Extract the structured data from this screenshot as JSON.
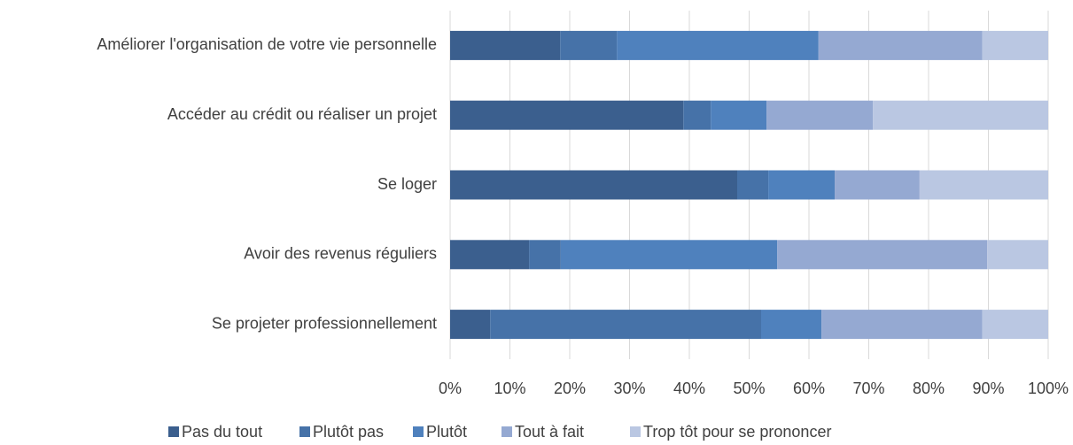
{
  "chart_data": {
    "type": "stacked_barh",
    "categories": [
      "Améliorer l'organisation de votre vie personnelle",
      "Accéder au crédit ou réaliser un projet",
      "Se loger",
      "Avoir des revenus réguliers",
      "Se projeter professionnellement"
    ],
    "series": [
      {
        "name": "Pas du tout",
        "color": "#3b5f8e",
        "values": [
          18.4,
          39,
          48,
          13.2,
          6.7
        ]
      },
      {
        "name": "Plutôt pas",
        "color": "#4672a8",
        "values": [
          9.5,
          4.6,
          5.2,
          5.3,
          45.3
        ]
      },
      {
        "name": "Plutôt",
        "color": "#4f81bd",
        "values": [
          33.7,
          9.3,
          11.1,
          36.2,
          10.1
        ]
      },
      {
        "name": "Tout à fait",
        "color": "#95a9d2",
        "values": [
          27.4,
          17.8,
          14.2,
          35.1,
          26.9
        ]
      },
      {
        "name": "Trop tôt pour se prononcer",
        "color": "#bac7e2",
        "values": [
          11,
          29.3,
          21.5,
          10.2,
          11
        ]
      }
    ],
    "xlim": [
      0,
      100
    ],
    "xticks": [
      {
        "value": 0,
        "label": "0%"
      },
      {
        "value": 10,
        "label": "10%"
      },
      {
        "value": 20,
        "label": "20%"
      },
      {
        "value": 30,
        "label": "30%"
      },
      {
        "value": 40,
        "label": "40%"
      },
      {
        "value": 50,
        "label": "50%"
      },
      {
        "value": 60,
        "label": "60%"
      },
      {
        "value": 70,
        "label": "70%"
      },
      {
        "value": 80,
        "label": "80%"
      },
      {
        "value": 90,
        "label": "90%"
      },
      {
        "value": 100,
        "label": "100%"
      }
    ],
    "grid": true,
    "legend": "bottom"
  }
}
